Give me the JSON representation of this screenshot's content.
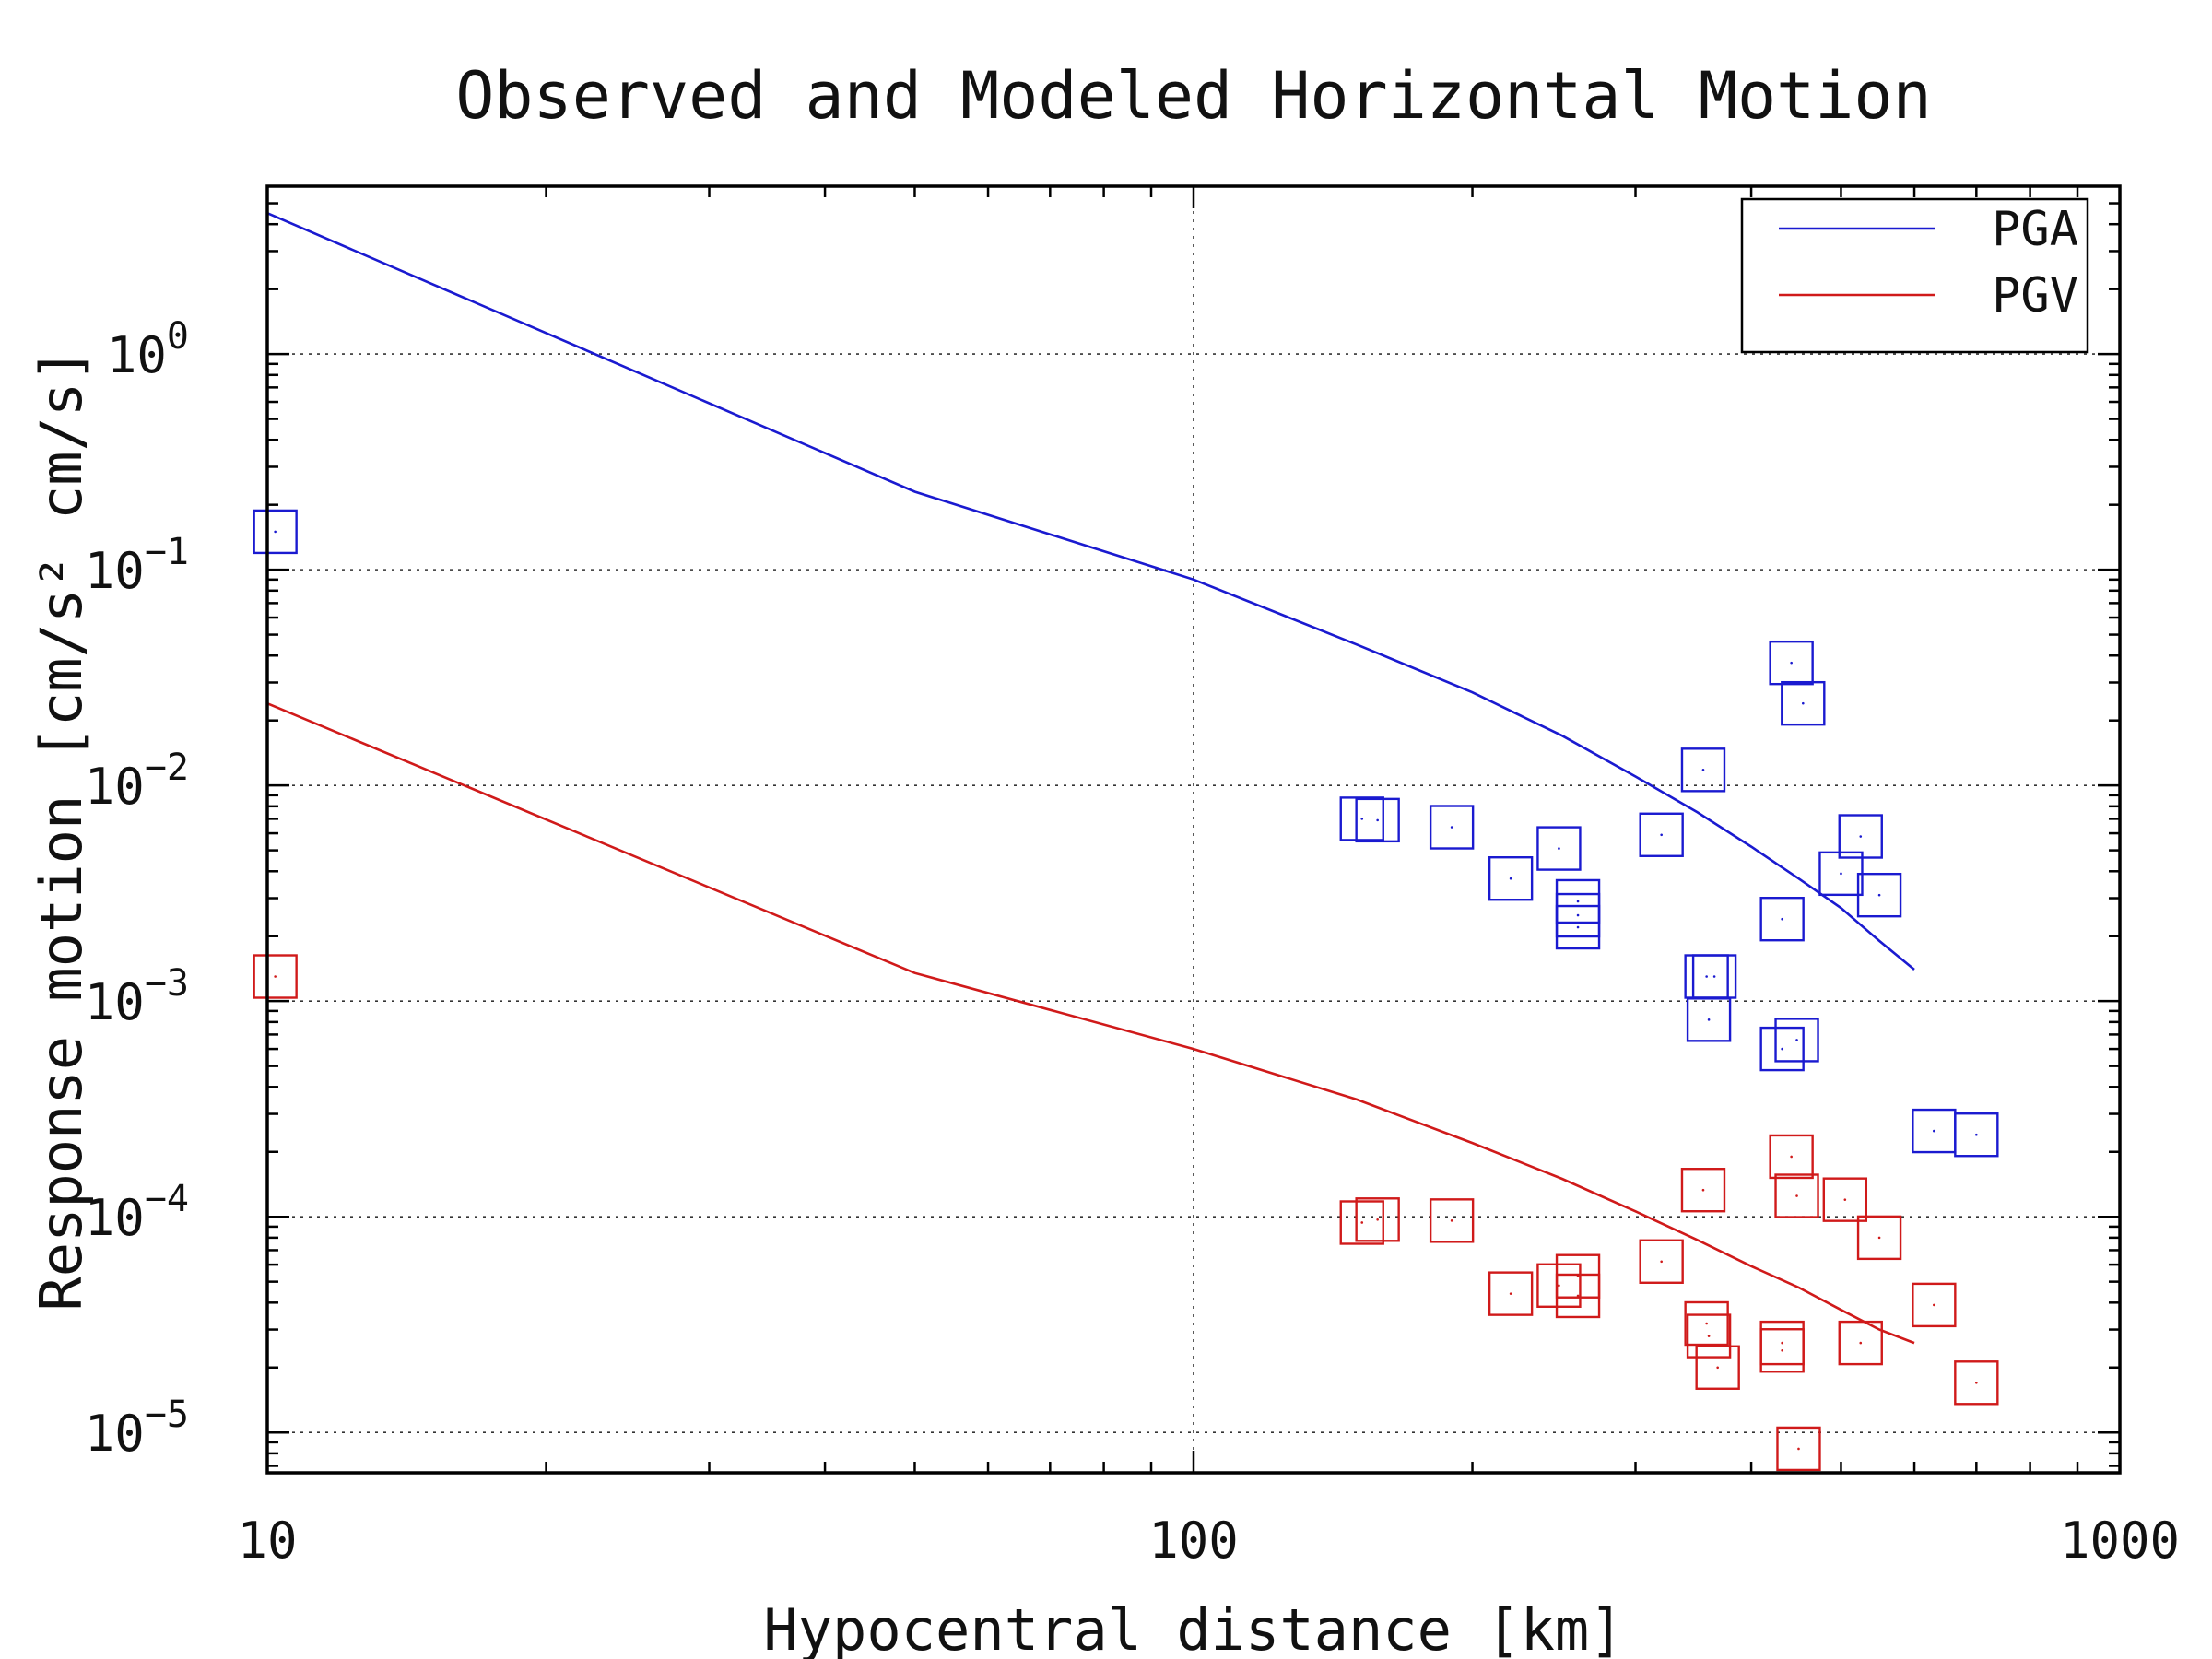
{
  "chart_data": {
    "type": "scatter",
    "title": "Observed and Modeled Horizontal Motion",
    "xlabel": "Hypocentral distance [km]",
    "ylabel": "Response motion [cm/s² cm/s]",
    "xscale": "log",
    "yscale": "log",
    "xlim": [
      10,
      1000
    ],
    "ylim": [
      6.5e-06,
      6
    ],
    "grid": true,
    "legend_position": "top-right",
    "x_ticks": [
      {
        "value": 10,
        "label": "10"
      },
      {
        "value": 100,
        "label": "100"
      },
      {
        "value": 1000,
        "label": "1000"
      }
    ],
    "y_ticks": [
      {
        "value": 1,
        "base": "10",
        "exp": "0"
      },
      {
        "value": 0.1,
        "base": "10",
        "exp": "−1"
      },
      {
        "value": 0.01,
        "base": "10",
        "exp": "−2"
      },
      {
        "value": 0.001,
        "base": "10",
        "exp": "−3"
      },
      {
        "value": 0.0001,
        "base": "10",
        "exp": "−4"
      },
      {
        "value": 1e-05,
        "base": "10",
        "exp": "−5"
      }
    ],
    "series": [
      {
        "name": "PGA",
        "color": "#1a1ad0",
        "model_line": [
          {
            "x": 10,
            "y": 4.5
          },
          {
            "x": 50,
            "y": 0.23
          },
          {
            "x": 100,
            "y": 0.09
          },
          {
            "x": 150,
            "y": 0.045
          },
          {
            "x": 200,
            "y": 0.027
          },
          {
            "x": 250,
            "y": 0.017
          },
          {
            "x": 300,
            "y": 0.011
          },
          {
            "x": 350,
            "y": 0.0075
          },
          {
            "x": 400,
            "y": 0.0052
          },
          {
            "x": 450,
            "y": 0.0037
          },
          {
            "x": 500,
            "y": 0.0027
          },
          {
            "x": 550,
            "y": 0.0019
          },
          {
            "x": 600,
            "y": 0.0014
          }
        ],
        "observed": [
          {
            "x": 10.2,
            "y": 0.15
          },
          {
            "x": 152,
            "y": 0.007
          },
          {
            "x": 158,
            "y": 0.0069
          },
          {
            "x": 190,
            "y": 0.0064
          },
          {
            "x": 220,
            "y": 0.0037
          },
          {
            "x": 248,
            "y": 0.0051
          },
          {
            "x": 260,
            "y": 0.0029
          },
          {
            "x": 260,
            "y": 0.0025
          },
          {
            "x": 260,
            "y": 0.0022
          },
          {
            "x": 320,
            "y": 0.0059
          },
          {
            "x": 355,
            "y": 0.0118
          },
          {
            "x": 358,
            "y": 0.0013
          },
          {
            "x": 365,
            "y": 0.0013
          },
          {
            "x": 360,
            "y": 0.00082
          },
          {
            "x": 442,
            "y": 0.037
          },
          {
            "x": 455,
            "y": 0.024
          },
          {
            "x": 432,
            "y": 0.0024
          },
          {
            "x": 432,
            "y": 0.0006
          },
          {
            "x": 448,
            "y": 0.00066
          },
          {
            "x": 500,
            "y": 0.0039
          },
          {
            "x": 525,
            "y": 0.0058
          },
          {
            "x": 550,
            "y": 0.0031
          },
          {
            "x": 630,
            "y": 0.00025
          },
          {
            "x": 700,
            "y": 0.00024
          }
        ]
      },
      {
        "name": "PGV",
        "color": "#d01a1a",
        "model_line": [
          {
            "x": 10,
            "y": 0.024
          },
          {
            "x": 50,
            "y": 0.00135
          },
          {
            "x": 100,
            "y": 0.0006
          },
          {
            "x": 150,
            "y": 0.00035
          },
          {
            "x": 200,
            "y": 0.00022
          },
          {
            "x": 250,
            "y": 0.00015
          },
          {
            "x": 300,
            "y": 0.000106
          },
          {
            "x": 350,
            "y": 7.8e-05
          },
          {
            "x": 400,
            "y": 5.9e-05
          },
          {
            "x": 450,
            "y": 4.7e-05
          },
          {
            "x": 500,
            "y": 3.7e-05
          },
          {
            "x": 550,
            "y": 3e-05
          },
          {
            "x": 600,
            "y": 2.6e-05
          }
        ],
        "observed": [
          {
            "x": 10.2,
            "y": 0.0013
          },
          {
            "x": 152,
            "y": 9.4e-05
          },
          {
            "x": 158,
            "y": 9.7e-05
          },
          {
            "x": 190,
            "y": 9.6e-05
          },
          {
            "x": 220,
            "y": 4.4e-05
          },
          {
            "x": 248,
            "y": 4.8e-05
          },
          {
            "x": 260,
            "y": 5.3e-05
          },
          {
            "x": 260,
            "y": 4.3e-05
          },
          {
            "x": 320,
            "y": 6.2e-05
          },
          {
            "x": 355,
            "y": 0.000133
          },
          {
            "x": 358,
            "y": 3.2e-05
          },
          {
            "x": 360,
            "y": 2.8e-05
          },
          {
            "x": 368,
            "y": 2e-05
          },
          {
            "x": 442,
            "y": 0.00019
          },
          {
            "x": 448,
            "y": 0.000125
          },
          {
            "x": 432,
            "y": 2.6e-05
          },
          {
            "x": 432,
            "y": 2.4e-05
          },
          {
            "x": 450,
            "y": 8.4e-06
          },
          {
            "x": 505,
            "y": 0.00012
          },
          {
            "x": 525,
            "y": 2.6e-05
          },
          {
            "x": 550,
            "y": 8e-05
          },
          {
            "x": 630,
            "y": 3.9e-05
          },
          {
            "x": 700,
            "y": 1.7e-05
          }
        ]
      }
    ]
  }
}
